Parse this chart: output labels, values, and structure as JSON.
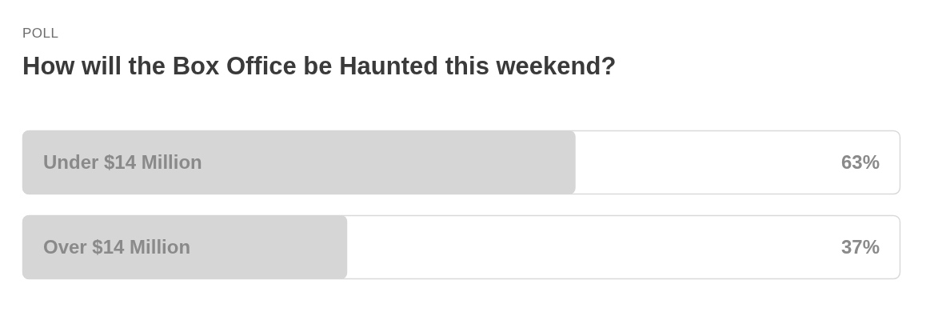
{
  "chart_data": {
    "type": "bar",
    "orientation": "horizontal",
    "title": "How will the Box Office be Haunted this weekend?",
    "annotations": [
      "POLL"
    ],
    "categories": [
      "Under $14 Million",
      "Over $14 Million"
    ],
    "values": [
      63,
      37
    ],
    "value_labels": [
      "63%",
      "37%"
    ],
    "color": "#d6d6d6",
    "xlim": [
      0,
      100
    ]
  }
}
